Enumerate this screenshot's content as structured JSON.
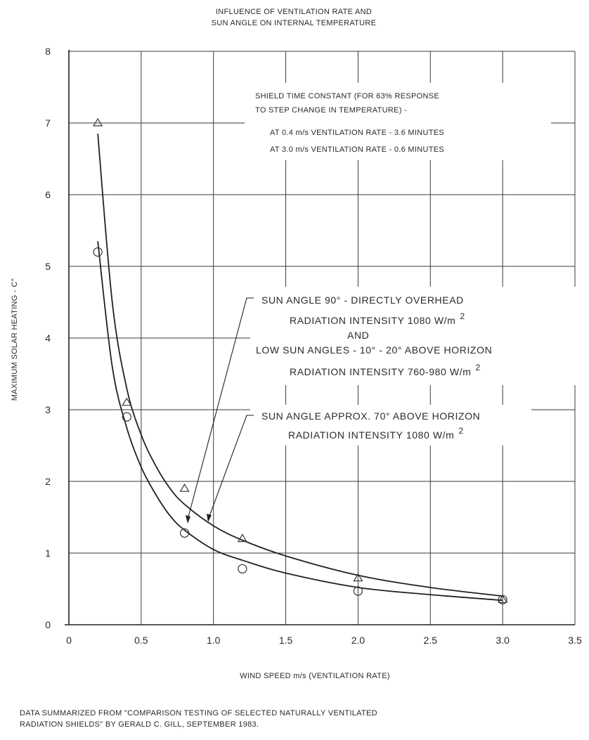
{
  "chart_data": {
    "type": "line",
    "title": "INFLUENCE OF VENTILATION RATE AND",
    "subtitle": "SUN ANGLE ON INTERNAL TEMPERATURE",
    "xlabel": "WIND SPEED m/s (VENTILATION RATE)",
    "ylabel": "MAXIMUM SOLAR HEATING - C°",
    "xlim": [
      0,
      3.5
    ],
    "ylim": [
      0,
      8
    ],
    "grid": true,
    "x_ticks": [
      "0",
      "0.5",
      "1.0",
      "1.5",
      "2.0",
      "2.5",
      "3.0",
      "3.5"
    ],
    "y_ticks": [
      "0",
      "1",
      "2",
      "3",
      "4",
      "5",
      "6",
      "7",
      "8"
    ],
    "series": [
      {
        "marker": "triangle",
        "points": [
          {
            "x": 0.2,
            "y": 7.0
          },
          {
            "x": 0.4,
            "y": 3.1
          },
          {
            "x": 0.8,
            "y": 1.9
          },
          {
            "x": 1.2,
            "y": 1.2
          },
          {
            "x": 2.0,
            "y": 0.65
          },
          {
            "x": 3.0,
            "y": 0.35
          }
        ],
        "curve": [
          {
            "x": 0.2,
            "y": 6.85
          },
          {
            "x": 0.3,
            "y": 4.5
          },
          {
            "x": 0.4,
            "y": 3.3
          },
          {
            "x": 0.5,
            "y": 2.65
          },
          {
            "x": 0.6,
            "y": 2.22
          },
          {
            "x": 0.7,
            "y": 1.9
          },
          {
            "x": 0.8,
            "y": 1.68
          },
          {
            "x": 1.0,
            "y": 1.38
          },
          {
            "x": 1.2,
            "y": 1.18
          },
          {
            "x": 1.5,
            "y": 0.96
          },
          {
            "x": 2.0,
            "y": 0.69
          },
          {
            "x": 2.5,
            "y": 0.52
          },
          {
            "x": 3.0,
            "y": 0.4
          }
        ]
      },
      {
        "marker": "circle",
        "points": [
          {
            "x": 0.2,
            "y": 5.2
          },
          {
            "x": 0.4,
            "y": 2.9
          },
          {
            "x": 0.8,
            "y": 1.28
          },
          {
            "x": 1.2,
            "y": 0.78
          },
          {
            "x": 2.0,
            "y": 0.47
          },
          {
            "x": 3.0,
            "y": 0.35
          }
        ],
        "curve": [
          {
            "x": 0.2,
            "y": 5.35
          },
          {
            "x": 0.3,
            "y": 3.6
          },
          {
            "x": 0.4,
            "y": 2.75
          },
          {
            "x": 0.5,
            "y": 2.2
          },
          {
            "x": 0.6,
            "y": 1.82
          },
          {
            "x": 0.7,
            "y": 1.52
          },
          {
            "x": 0.8,
            "y": 1.32
          },
          {
            "x": 1.0,
            "y": 1.05
          },
          {
            "x": 1.2,
            "y": 0.9
          },
          {
            "x": 1.5,
            "y": 0.72
          },
          {
            "x": 2.0,
            "y": 0.52
          },
          {
            "x": 2.5,
            "y": 0.42
          },
          {
            "x": 3.0,
            "y": 0.34
          }
        ]
      }
    ],
    "annotations": {
      "shield_note": [
        "SHIELD TIME CONSTANT (FOR 63% RESPONSE",
        "TO STEP CHANGE IN TEMPERATURE) -",
        "AT 0.4 m/s VENTILATION RATE - 3.6 MINUTES",
        "AT 3.0 m/s VENTILATION RATE - 0.6 MINUTES"
      ],
      "upper_curve_label": {
        "line1": "SUN ANGLE 90° - DIRECTLY OVERHEAD",
        "line2": "RADIATION INTENSITY 1080 W/m",
        "line2_sup": "2",
        "line3": "AND",
        "line4": "LOW SUN ANGLES - 10° - 20° ABOVE HORIZON",
        "line5": "RADIATION INTENSITY 760-980 W/m",
        "line5_sup": "2"
      },
      "lower_curve_label": {
        "line1": "SUN ANGLE APPROX. 70° ABOVE HORIZON",
        "line2": "RADIATION INTENSITY 1080 W/m",
        "line2_sup": "2"
      }
    },
    "source_note": [
      "DATA SUMMARIZED FROM \"COMPARISON TESTING OF SELECTED NATURALLY VENTILATED",
      "RADIATION SHIELDS\" BY GERALD C. GILL, SEPTEMBER 1983."
    ]
  }
}
